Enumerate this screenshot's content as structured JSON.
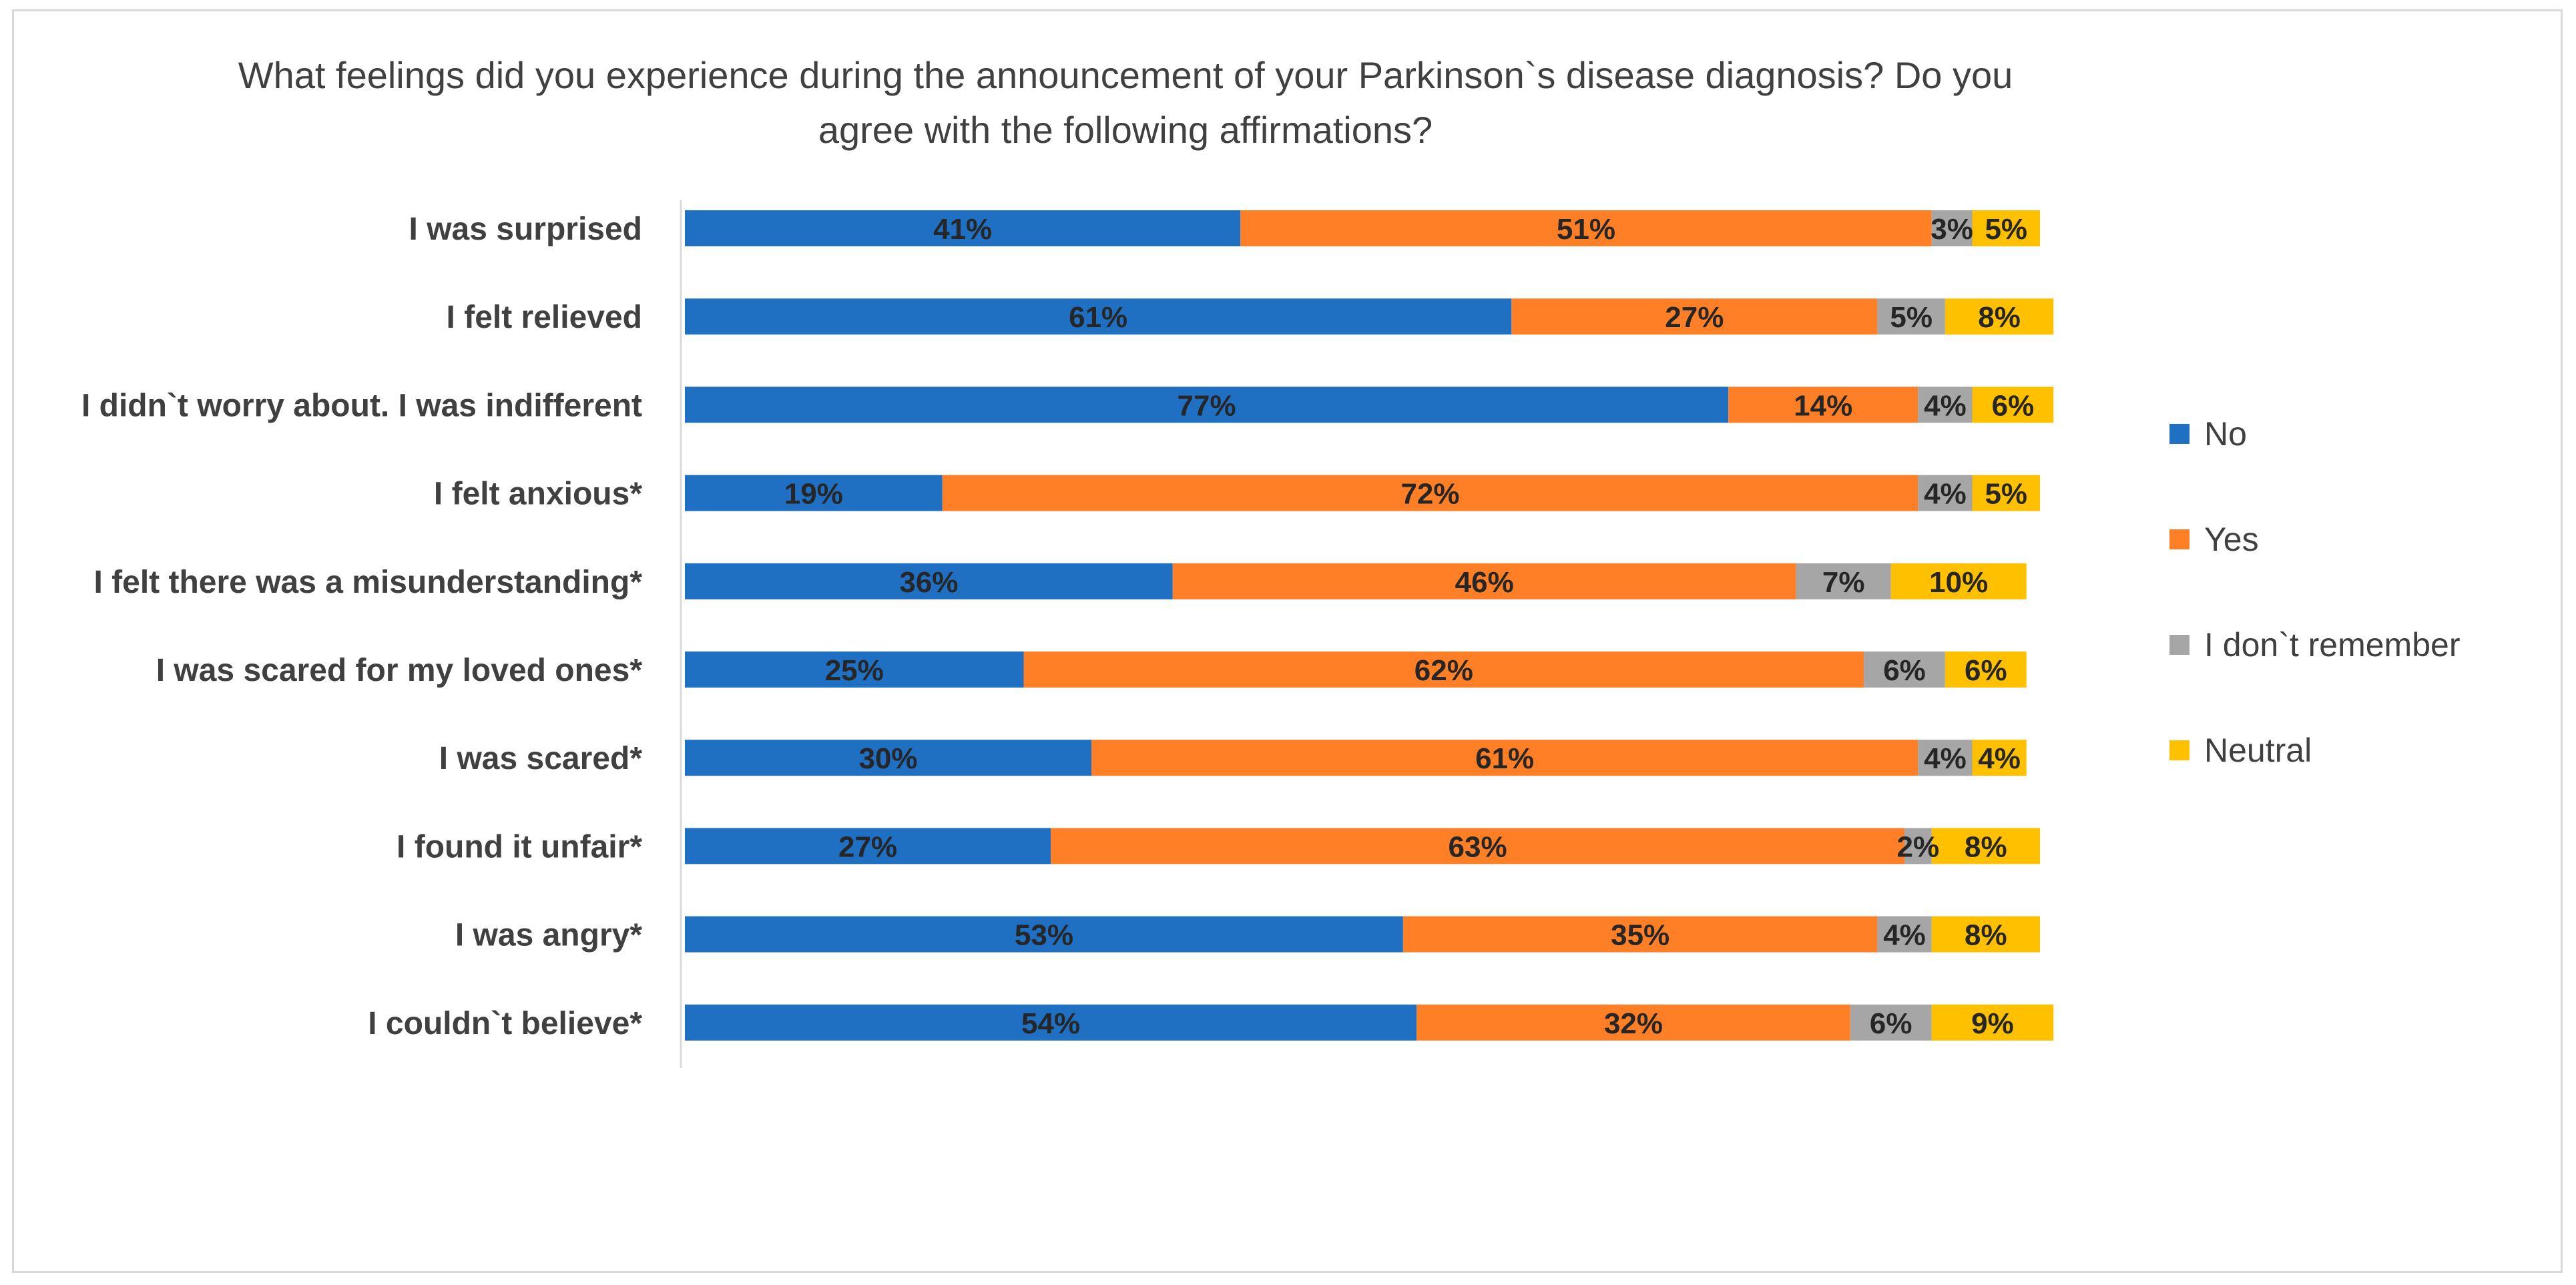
{
  "chart_data": {
    "type": "bar",
    "orientation": "horizontal",
    "stacked": true,
    "title": "What feelings did you experience during the announcement of your Parkinson`s disease diagnosis? Do you agree with the following affirmations?",
    "title_lines": [
      "What feelings did you experience during the announcement of your Parkinson`s disease diagnosis? Do you",
      "agree with the following affirmations?"
    ],
    "categories": [
      "I was surprised",
      "I felt relieved",
      "I didn`t worry about. I was indifferent",
      "I felt anxious*",
      "I felt there was a misunderstanding*",
      "I was scared for my loved ones*",
      "I was scared*",
      "I found it unfair*",
      "I was angry*",
      "I couldn`t believe*"
    ],
    "series": [
      {
        "name": "No",
        "color": "#1f6fc3",
        "values": [
          41,
          61,
          77,
          19,
          36,
          25,
          30,
          27,
          53,
          54
        ]
      },
      {
        "name": "Yes",
        "color": "#ff7f27",
        "values": [
          51,
          27,
          14,
          72,
          46,
          62,
          61,
          63,
          35,
          32
        ]
      },
      {
        "name": "I don`t remember",
        "color": "#a6a6a6",
        "values": [
          3,
          5,
          4,
          4,
          7,
          6,
          4,
          2,
          4,
          6
        ]
      },
      {
        "name": "Neutral",
        "color": "#ffc000",
        "values": [
          5,
          8,
          6,
          5,
          10,
          6,
          4,
          8,
          8,
          9
        ]
      }
    ],
    "value_format": "{v}%",
    "xlabel": "",
    "ylabel": "",
    "legend_position": "right",
    "grid": false
  }
}
